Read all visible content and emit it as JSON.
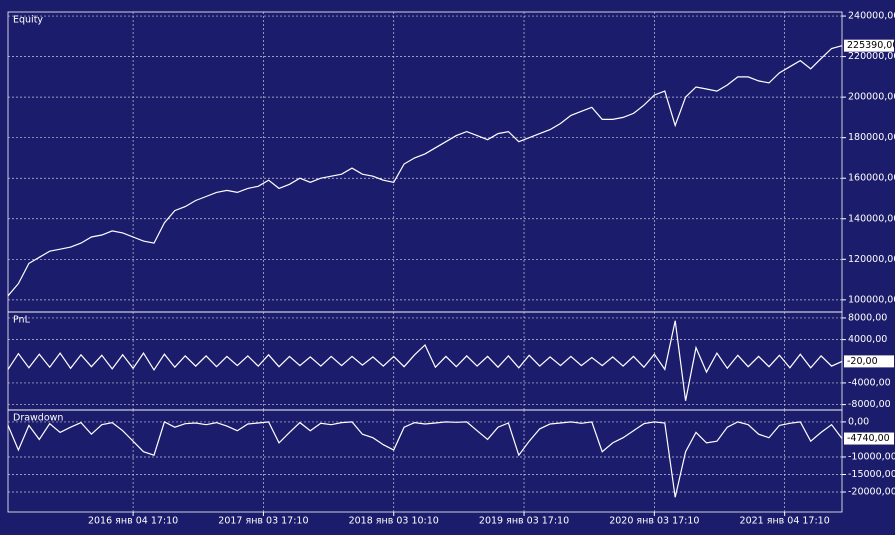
{
  "chart_data": [
    {
      "type": "line",
      "title": "Equity",
      "color": "#ffffff",
      "grid": true,
      "x": [
        2015.04,
        2015.12,
        2015.2,
        2015.28,
        2015.36,
        2015.44,
        2015.52,
        2015.6,
        2015.68,
        2015.76,
        2015.84,
        2015.92,
        2016.0,
        2016.08,
        2016.16,
        2016.24,
        2016.32,
        2016.4,
        2016.48,
        2016.56,
        2016.64,
        2016.72,
        2016.8,
        2016.88,
        2016.96,
        2017.04,
        2017.12,
        2017.2,
        2017.28,
        2017.36,
        2017.44,
        2017.52,
        2017.6,
        2017.68,
        2017.76,
        2017.84,
        2017.92,
        2018.0,
        2018.08,
        2018.16,
        2018.24,
        2018.32,
        2018.4,
        2018.48,
        2018.56,
        2018.64,
        2018.72,
        2018.8,
        2018.88,
        2018.96,
        2019.04,
        2019.12,
        2019.2,
        2019.28,
        2019.36,
        2019.44,
        2019.52,
        2019.6,
        2019.68,
        2019.76,
        2019.84,
        2019.92,
        2020.0,
        2020.08,
        2020.16,
        2020.24,
        2020.32,
        2020.4,
        2020.48,
        2020.56,
        2020.64,
        2020.72,
        2020.8,
        2020.88,
        2020.96,
        2021.04,
        2021.12,
        2021.2,
        2021.28,
        2021.36,
        2021.44
      ],
      "values": [
        102000,
        108000,
        118000,
        121000,
        124000,
        125000,
        126000,
        128000,
        131000,
        132000,
        134000,
        133000,
        131000,
        129000,
        128000,
        138000,
        144000,
        146000,
        149000,
        151000,
        153000,
        154000,
        153000,
        155000,
        156000,
        159000,
        155000,
        157000,
        160000,
        158000,
        160000,
        161000,
        162000,
        165000,
        162000,
        161000,
        159000,
        158000,
        167000,
        170000,
        172000,
        175000,
        178000,
        181000,
        183000,
        181000,
        179000,
        182000,
        183000,
        178000,
        180000,
        182000,
        184000,
        187000,
        191000,
        193000,
        195000,
        189000,
        189000,
        190000,
        192000,
        196000,
        201000,
        203000,
        186000,
        200000,
        205000,
        204000,
        203000,
        206000,
        210000,
        210000,
        208000,
        207000,
        212000,
        215000,
        218000,
        214000,
        219000,
        224000,
        225390
      ],
      "last_label": "225390,00",
      "ylim": [
        94000,
        242000
      ],
      "yticks": [
        {
          "value": 100000,
          "label": "100000,00"
        },
        {
          "value": 120000,
          "label": "120000,00"
        },
        {
          "value": 140000,
          "label": "140000,00"
        },
        {
          "value": 160000,
          "label": "160000,00"
        },
        {
          "value": 180000,
          "label": "180000,00"
        },
        {
          "value": 200000,
          "label": "200000,00"
        },
        {
          "value": 220000,
          "label": "220000,00"
        },
        {
          "value": 240000,
          "label": "240000,00"
        }
      ]
    },
    {
      "type": "line",
      "title": "PnL",
      "color": "#ffffff",
      "grid": true,
      "x": [
        2015.04,
        2015.12,
        2015.2,
        2015.28,
        2015.36,
        2015.44,
        2015.52,
        2015.6,
        2015.68,
        2015.76,
        2015.84,
        2015.92,
        2016.0,
        2016.08,
        2016.16,
        2016.24,
        2016.32,
        2016.4,
        2016.48,
        2016.56,
        2016.64,
        2016.72,
        2016.8,
        2016.88,
        2016.96,
        2017.04,
        2017.12,
        2017.2,
        2017.28,
        2017.36,
        2017.44,
        2017.52,
        2017.6,
        2017.68,
        2017.76,
        2017.84,
        2017.92,
        2018.0,
        2018.08,
        2018.16,
        2018.24,
        2018.32,
        2018.4,
        2018.48,
        2018.56,
        2018.64,
        2018.72,
        2018.8,
        2018.88,
        2018.96,
        2019.04,
        2019.12,
        2019.2,
        2019.28,
        2019.36,
        2019.44,
        2019.52,
        2019.6,
        2019.68,
        2019.76,
        2019.84,
        2019.92,
        2020.0,
        2020.08,
        2020.16,
        2020.24,
        2020.32,
        2020.4,
        2020.48,
        2020.56,
        2020.64,
        2020.72,
        2020.8,
        2020.88,
        2020.96,
        2021.04,
        2021.12,
        2021.2,
        2021.28,
        2021.36,
        2021.44
      ],
      "values": [
        -1500,
        1400,
        -1200,
        1300,
        -1100,
        1500,
        -1300,
        1200,
        -1000,
        1100,
        -1400,
        1200,
        -1300,
        1500,
        -1600,
        1300,
        -1100,
        1000,
        -900,
        1000,
        -1000,
        900,
        -800,
        1000,
        -900,
        1200,
        -1000,
        900,
        -800,
        800,
        -900,
        900,
        -800,
        900,
        -700,
        800,
        -900,
        900,
        -1000,
        1200,
        3000,
        -1100,
        900,
        -1000,
        1000,
        -900,
        900,
        -1100,
        1000,
        -1200,
        1100,
        -900,
        800,
        -800,
        900,
        -800,
        700,
        -800,
        800,
        -900,
        900,
        -1100,
        1300,
        -1500,
        7500,
        -7300,
        2500,
        -2000,
        1500,
        -1300,
        1100,
        -1000,
        900,
        -1000,
        1100,
        -1200,
        1300,
        -1200,
        1000,
        -900,
        -20
      ],
      "last_label": "-20,00",
      "ylim": [
        -9000,
        9100
      ],
      "yticks": [
        {
          "value": -8000,
          "label": "-8000,00"
        },
        {
          "value": -4000,
          "label": "-4000,00"
        },
        {
          "value": 4000,
          "label": "4000,00"
        },
        {
          "value": 8000,
          "label": "8000,00"
        }
      ]
    },
    {
      "type": "line",
      "title": "Drawdown",
      "color": "#ffffff",
      "grid": true,
      "x": [
        2015.04,
        2015.12,
        2015.2,
        2015.28,
        2015.36,
        2015.44,
        2015.52,
        2015.6,
        2015.68,
        2015.76,
        2015.84,
        2015.92,
        2016.0,
        2016.08,
        2016.16,
        2016.24,
        2016.32,
        2016.4,
        2016.48,
        2016.56,
        2016.64,
        2016.72,
        2016.8,
        2016.88,
        2016.96,
        2017.04,
        2017.12,
        2017.2,
        2017.28,
        2017.36,
        2017.44,
        2017.52,
        2017.6,
        2017.68,
        2017.76,
        2017.84,
        2017.92,
        2018.0,
        2018.08,
        2018.16,
        2018.24,
        2018.32,
        2018.4,
        2018.48,
        2018.56,
        2018.64,
        2018.72,
        2018.8,
        2018.88,
        2018.96,
        2019.04,
        2019.12,
        2019.2,
        2019.28,
        2019.36,
        2019.44,
        2019.52,
        2019.6,
        2019.68,
        2019.76,
        2019.84,
        2019.92,
        2020.0,
        2020.08,
        2020.16,
        2020.24,
        2020.32,
        2020.4,
        2020.48,
        2020.56,
        2020.64,
        2020.72,
        2020.8,
        2020.88,
        2020.96,
        2021.04,
        2021.12,
        2021.2,
        2021.28,
        2021.36,
        2021.44
      ],
      "values": [
        -1000,
        -8000,
        -1000,
        -5000,
        -500,
        -3000,
        -1500,
        -200,
        -3500,
        -800,
        -200,
        -2500,
        -5500,
        -8500,
        -9500,
        0,
        -1500,
        -500,
        -300,
        -800,
        -200,
        -1200,
        -2500,
        -600,
        -300,
        0,
        -6000,
        -3000,
        -200,
        -2500,
        -400,
        -800,
        -200,
        0,
        -3500,
        -4500,
        -6500,
        -8000,
        -1500,
        -200,
        -600,
        -300,
        0,
        -100,
        0,
        -2500,
        -5000,
        -1500,
        -300,
        -9500,
        -5500,
        -2000,
        -600,
        -300,
        0,
        -400,
        0,
        -8500,
        -6000,
        -4500,
        -2500,
        -500,
        0,
        -300,
        -21500,
        -8500,
        -3000,
        -6000,
        -5500,
        -1500,
        0,
        -800,
        -3500,
        -4500,
        -1000,
        -400,
        0,
        -5500,
        -3000,
        -800,
        -4740
      ],
      "last_label": "-4740,00",
      "ylim": [
        -25700,
        3400
      ],
      "yticks": [
        {
          "value": -20000,
          "label": "-20000,00"
        },
        {
          "value": -15000,
          "label": "-15000,00"
        },
        {
          "value": -10000,
          "label": "-10000,00"
        },
        {
          "value": 0,
          "label": "0,00"
        }
      ],
      "xlim": [
        2015.04,
        2021.44
      ],
      "xticks": [
        {
          "value": 2016.0,
          "label": "2016 янв 04 17:10"
        },
        {
          "value": 2017.0,
          "label": "2017 янв 03 17:10"
        },
        {
          "value": 2018.0,
          "label": "2018 янв 03 10:10"
        },
        {
          "value": 2019.0,
          "label": "2019 янв 03 17:10"
        },
        {
          "value": 2020.0,
          "label": "2020 янв 03 17:10"
        },
        {
          "value": 2021.0,
          "label": "2021 янв 04 17:10"
        }
      ]
    }
  ]
}
